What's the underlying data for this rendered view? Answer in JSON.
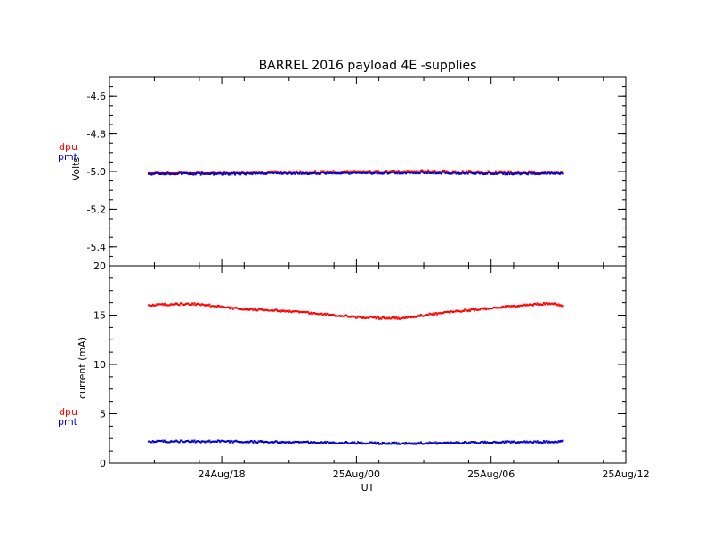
{
  "chart_data": {
    "title": "BARREL 2016 payload 4E -supplies",
    "xlabel": "UT",
    "colors": {
      "dpu": "#ff0000",
      "pmt": "#0000cc"
    },
    "x_ticks": [
      "24Aug/18",
      "25Aug/00",
      "25Aug/06",
      "25Aug/12"
    ],
    "x_tick_hours": [
      18,
      24,
      30,
      36
    ],
    "x_range_hours": [
      13.0,
      36.0
    ],
    "panels": [
      {
        "type": "scatter",
        "ylabel": "Volts",
        "ylim": [
          -5.5,
          -4.5
        ],
        "y_ticks": [
          -4.6,
          -4.8,
          -5.0,
          -5.2,
          -5.4
        ],
        "y_tick_labels": [
          "-4.6",
          "-4.8",
          "-5.0",
          "-5.2",
          "-5.4"
        ],
        "legend": [
          "dpu",
          "pmt"
        ],
        "series": [
          {
            "name": "dpu",
            "color": "#ff0000",
            "x": [
              14.7,
              18,
              21,
              24,
              27,
              30,
              33,
              33.2
            ],
            "y": [
              -5.005,
              -5.005,
              -5.003,
              -5.0,
              -4.998,
              -5.003,
              -5.005,
              -5.005
            ]
          },
          {
            "name": "pmt",
            "color": "#0000cc",
            "x": [
              14.7,
              18,
              21,
              24,
              27,
              30,
              33,
              33.2
            ],
            "y": [
              -5.012,
              -5.012,
              -5.01,
              -5.008,
              -5.006,
              -5.01,
              -5.012,
              -5.012
            ]
          }
        ]
      },
      {
        "type": "scatter",
        "ylabel": "current (mA)",
        "ylim": [
          0,
          20
        ],
        "y_ticks": [
          0,
          5,
          10,
          15,
          20
        ],
        "y_tick_labels": [
          "0",
          "5",
          "10",
          "15",
          "20"
        ],
        "legend": [
          "dpu",
          "pmt"
        ],
        "series": [
          {
            "name": "dpu",
            "color": "#ff0000",
            "x": [
              14.7,
              16,
              17,
              18,
              19,
              20,
              21,
              22,
              23,
              24,
              25,
              26,
              27,
              28,
              29,
              30,
              31,
              32,
              32.8,
              33.2
            ],
            "y": [
              16.0,
              16.1,
              16.1,
              15.8,
              15.6,
              15.5,
              15.4,
              15.2,
              15.0,
              14.8,
              14.7,
              14.7,
              15.0,
              15.3,
              15.5,
              15.7,
              15.9,
              16.1,
              16.2,
              15.8
            ]
          },
          {
            "name": "pmt",
            "color": "#0000cc",
            "x": [
              14.7,
              16,
              18,
              20,
              22,
              24,
              25,
              26,
              27,
              28,
              30,
              32,
              33.2
            ],
            "y": [
              2.2,
              2.2,
              2.2,
              2.15,
              2.1,
              2.05,
              2.0,
              2.0,
              2.02,
              2.05,
              2.1,
              2.15,
              2.2
            ]
          }
        ]
      }
    ]
  }
}
